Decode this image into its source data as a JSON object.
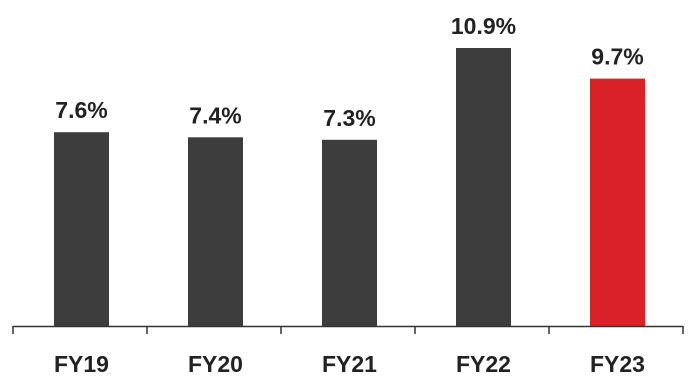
{
  "chart_data": {
    "type": "bar",
    "categories": [
      "FY19",
      "FY20",
      "FY21",
      "FY22",
      "FY23"
    ],
    "values": [
      7.6,
      7.4,
      7.3,
      10.9,
      9.7
    ],
    "data_labels": [
      "7.6%",
      "7.4%",
      "7.3%",
      "10.9%",
      "9.7%"
    ],
    "title": "",
    "xlabel": "",
    "ylabel": "",
    "ylim": [
      0,
      11.0
    ],
    "grid": false,
    "legend": "none",
    "colors": {
      "default_bar": "#3d3d3d",
      "highlight_bar": "#da2128",
      "axis": "#333333",
      "text": "#222222"
    },
    "highlight_index": 4
  }
}
